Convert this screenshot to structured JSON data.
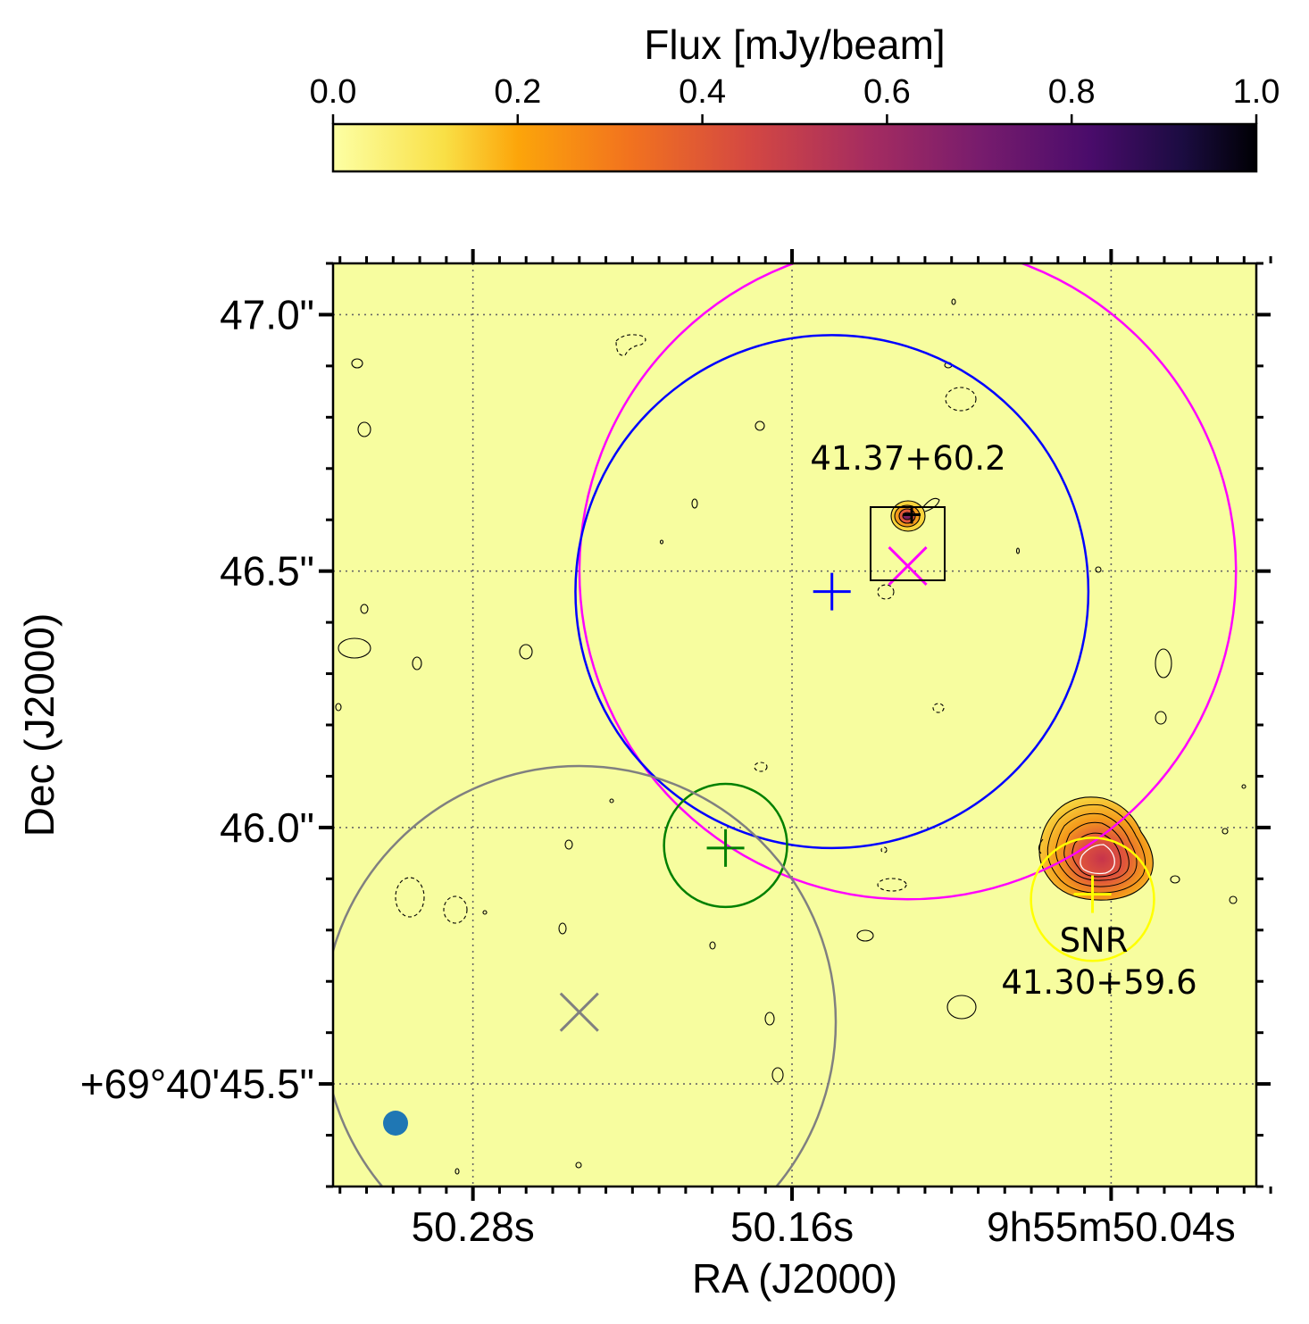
{
  "chart_data": {
    "type": "heatmap",
    "colorbar": {
      "label": "Flux [mJy/beam]",
      "ticks": [
        "0.0",
        "0.2",
        "0.4",
        "0.6",
        "0.8",
        "1.0"
      ],
      "range": [
        0.0,
        1.0
      ],
      "colormap": "inferno_r"
    },
    "xaxis": {
      "label": "RA (J2000)",
      "major_ticks": [
        "50.28s",
        "50.16s",
        "9h55m50.04s"
      ],
      "major_values_s": [
        50.28,
        50.16,
        50.04
      ],
      "range_s": [
        50.3326,
        49.9854
      ]
    },
    "yaxis": {
      "label": "Dec (J2000)",
      "major_ticks": [
        "47.0\"",
        "46.5\"",
        "46.0\"",
        "+69°40'45.5\""
      ],
      "major_values_arcsec": [
        47.0,
        46.5,
        46.0,
        45.5
      ],
      "range_arcsec": [
        45.3,
        47.1
      ]
    },
    "grid": "dotted",
    "beam": {
      "position": "bottom-left",
      "color": "#1f77b4"
    },
    "sources": [
      {
        "label": "41.37+60.2",
        "x_s": 50.13,
        "y_arcsec": 46.61,
        "box": true
      },
      {
        "label_lines": [
          "SNR",
          "41.30+59.6"
        ],
        "x_s": 50.04,
        "y_arcsec": 45.93
      }
    ],
    "markers": [
      {
        "shape": "plus",
        "color": "#0000ff",
        "x_s": 50.145,
        "y_arcsec": 46.46
      },
      {
        "shape": "x",
        "color": "#ff00ff",
        "x_s": 50.1165,
        "y_arcsec": 46.51
      },
      {
        "shape": "plus",
        "color": "#008000",
        "x_s": 50.185,
        "y_arcsec": 45.96
      },
      {
        "shape": "x",
        "color": "#808080",
        "x_s": 50.24,
        "y_arcsec": 45.64
      },
      {
        "shape": "plus",
        "color": "#ffff00",
        "x_s": 50.047,
        "y_arcsec": 45.87
      },
      {
        "shape": "plus",
        "color": "#000000",
        "x_s": 50.115,
        "y_arcsec": 46.61
      }
    ],
    "circles": [
      {
        "color": "#ff00ff",
        "x_s": 50.1165,
        "y_arcsec": 46.5,
        "radius_arcsec": 0.64
      },
      {
        "color": "#0000ff",
        "x_s": 50.145,
        "y_arcsec": 46.46,
        "radius_arcsec": 0.5
      },
      {
        "color": "#008000",
        "x_s": 50.185,
        "y_arcsec": 45.965,
        "radius_arcsec": 0.12
      },
      {
        "color": "#808080",
        "x_s": 50.24,
        "y_arcsec": 45.62,
        "radius_arcsec": 0.5
      },
      {
        "color": "#ffff00",
        "x_s": 50.047,
        "y_arcsec": 45.86,
        "radius_arcsec": 0.12
      }
    ]
  }
}
